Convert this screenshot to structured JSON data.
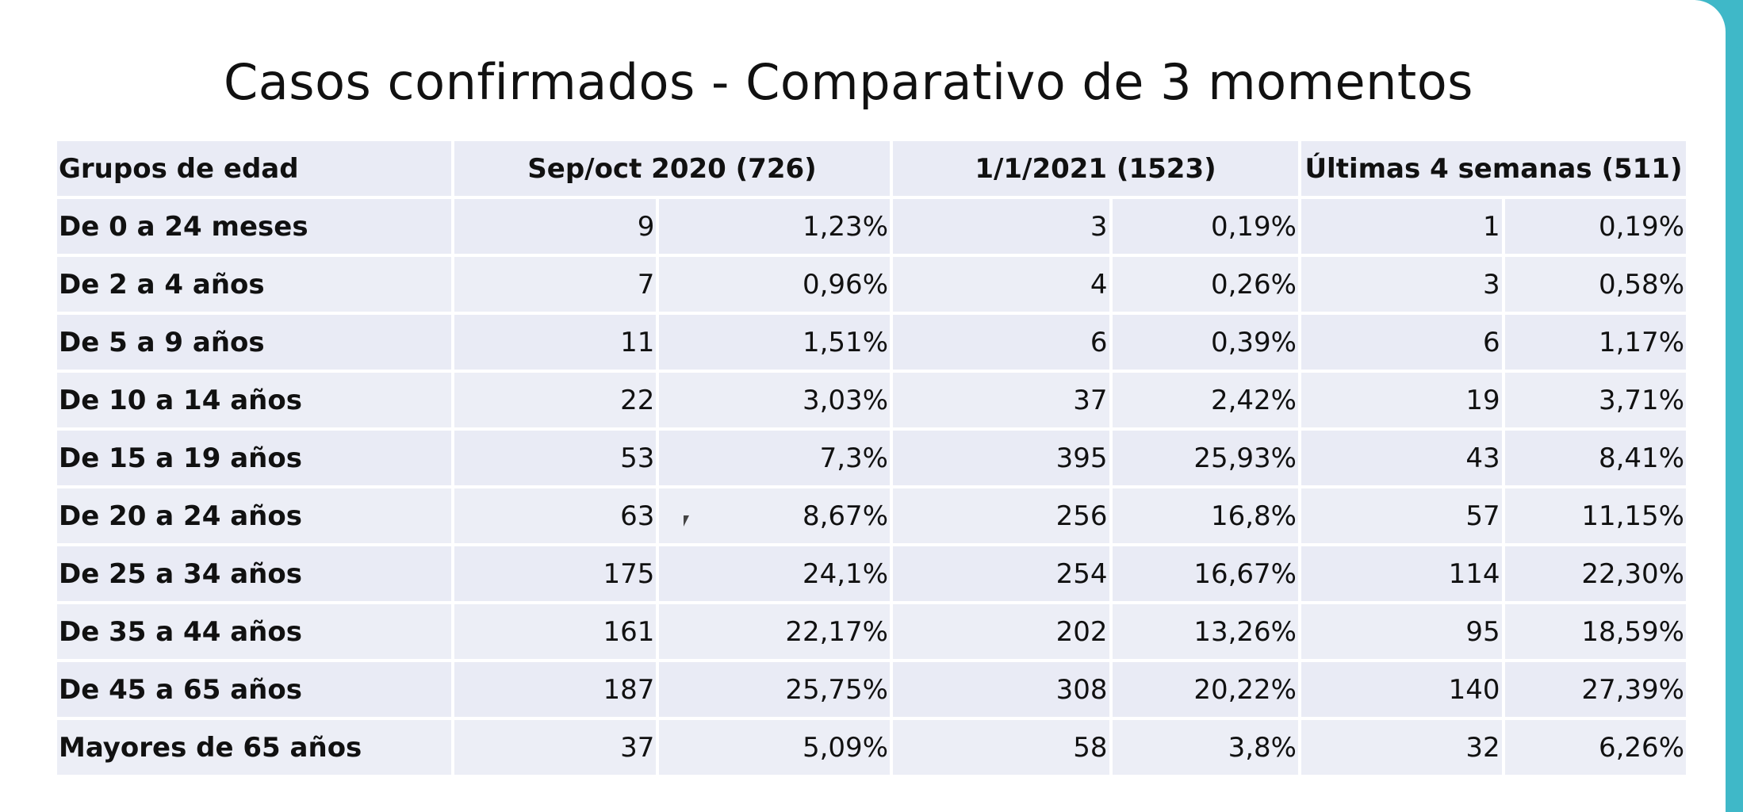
{
  "slide": {
    "title": "Casos confirmados - Comparativo de 3 momentos"
  },
  "table": {
    "headers": {
      "group": "Grupos de edad",
      "period1": "Sep/oct 2020 (726)",
      "period2": "1/1/2021 (1523)",
      "period3": "Últimas 4 semanas (511)"
    },
    "rows": [
      {
        "age": "De 0 a 24 meses",
        "n1": "9",
        "p1": "1,23%",
        "n2": "3",
        "p2": "0,19%",
        "n3": "1",
        "p3": "0,19%"
      },
      {
        "age": "De 2 a 4 años",
        "n1": "7",
        "p1": "0,96%",
        "n2": "4",
        "p2": "0,26%",
        "n3": "3",
        "p3": "0,58%"
      },
      {
        "age": "De 5 a 9 años",
        "n1": "11",
        "p1": "1,51%",
        "n2": "6",
        "p2": "0,39%",
        "n3": "6",
        "p3": "1,17%"
      },
      {
        "age": "De 10 a 14 años",
        "n1": "22",
        "p1": "3,03%",
        "n2": "37",
        "p2": "2,42%",
        "n3": "19",
        "p3": "3,71%"
      },
      {
        "age": "De 15 a 19 años",
        "n1": "53",
        "p1": "7,3%",
        "n2": "395",
        "p2": "25,93%",
        "n3": "43",
        "p3": "8,41%"
      },
      {
        "age": "De 20 a 24 años",
        "n1": "63",
        "p1": "8,67%",
        "n2": "256",
        "p2": "16,8%",
        "n3": "57",
        "p3": "11,15%"
      },
      {
        "age": "De 25 a 34 años",
        "n1": "175",
        "p1": "24,1%",
        "n2": "254",
        "p2": "16,67%",
        "n3": "114",
        "p3": "22,30%"
      },
      {
        "age": "De 35 a 44 años",
        "n1": "161",
        "p1": "22,17%",
        "n2": "202",
        "p2": "13,26%",
        "n3": "95",
        "p3": "18,59%"
      },
      {
        "age": "De 45 a 65 años",
        "n1": "187",
        "p1": "25,75%",
        "n2": "308",
        "p2": "20,22%",
        "n3": "140",
        "p3": "27,39%"
      },
      {
        "age": "Mayores de 65 años",
        "n1": "37",
        "p1": "5,09%",
        "n2": "58",
        "p2": "3,8%",
        "n3": "32",
        "p3": "6,26%"
      }
    ]
  },
  "colors": {
    "accent": "#3fb8c8",
    "cell_background": "#e9ebf5",
    "text": "#111111"
  },
  "icons": {
    "cursor": "mouse-pointer-icon"
  }
}
